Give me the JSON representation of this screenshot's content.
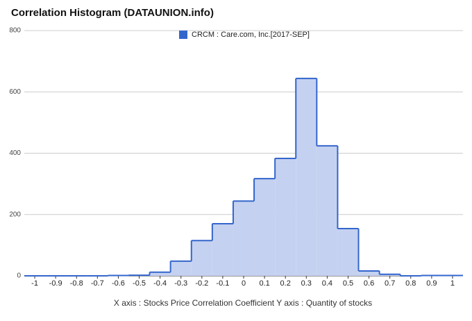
{
  "chart_data": {
    "type": "step-area",
    "title": "Correlation Histogram (DATAUNION.info)",
    "x_label": "X axis : Stocks Price Correlation Coefficient  Y axis : Quantity of stocks",
    "x": [
      -1,
      -0.9,
      -0.8,
      -0.7,
      -0.6,
      -0.5,
      -0.4,
      -0.3,
      -0.2,
      -0.1,
      0,
      0.1,
      0.2,
      0.3,
      0.4,
      0.5,
      0.6,
      0.7,
      0.8,
      0.9,
      1
    ],
    "series": [
      {
        "name": "CRCM : Care.com, Inc.[2017-SEP]",
        "color": "#3366cc",
        "fill": "#c5d1f0",
        "values": [
          0,
          0,
          0,
          0,
          1,
          2,
          12,
          48,
          115,
          170,
          244,
          317,
          383,
          644,
          424,
          154,
          16,
          5,
          0,
          1,
          1
        ]
      }
    ],
    "xlim": [
      -1.05,
      1.05
    ],
    "xticks": [
      -1,
      -0.9,
      -0.8,
      -0.7,
      -0.6,
      -0.5,
      -0.4,
      -0.3,
      -0.2,
      -0.1,
      0,
      0.1,
      0.2,
      0.3,
      0.4,
      0.5,
      0.6,
      0.7,
      0.8,
      0.9,
      1
    ],
    "ylim": [
      0,
      800
    ],
    "yticks": [
      0,
      200,
      400,
      600,
      800
    ],
    "grid": true,
    "legend": "top"
  }
}
